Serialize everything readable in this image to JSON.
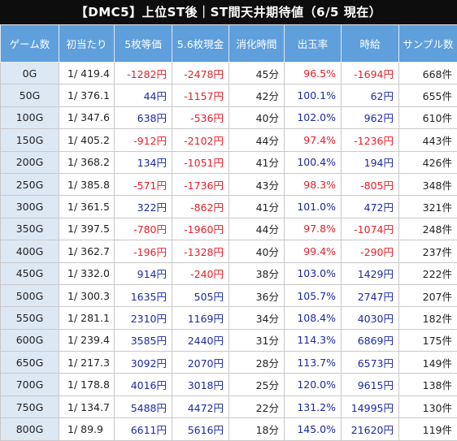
{
  "title": "【DMC5】上位ST後｜ST間天井期待値（6/5 現在）",
  "colors": {
    "header_bg": "#5f9fdc",
    "title_bg": "#0d0d0d",
    "negative": "#e8202a",
    "positive": "#1c2aa5",
    "first_col_bg": "#dde8f5"
  },
  "headers": [
    "ゲーム数",
    "初当たり",
    "5枚等価",
    "5.6枚現金",
    "消化時間",
    "出玉率",
    "時給",
    "サンプル数"
  ],
  "rows": [
    {
      "g": "0G",
      "hit": "1/ 419.4",
      "eq5": "-1282円",
      "cash56": "-2478円",
      "time": "45分",
      "rate": "96.5%",
      "wage": "-1694円",
      "samples": "668件"
    },
    {
      "g": "50G",
      "hit": "1/ 376.1",
      "eq5": "44円",
      "cash56": "-1157円",
      "time": "42分",
      "rate": "100.1%",
      "wage": "62円",
      "samples": "655件"
    },
    {
      "g": "100G",
      "hit": "1/ 347.6",
      "eq5": "638円",
      "cash56": "-536円",
      "time": "40分",
      "rate": "102.0%",
      "wage": "962円",
      "samples": "610件"
    },
    {
      "g": "150G",
      "hit": "1/ 405.2",
      "eq5": "-912円",
      "cash56": "-2102円",
      "time": "44分",
      "rate": "97.4%",
      "wage": "-1236円",
      "samples": "443件"
    },
    {
      "g": "200G",
      "hit": "1/ 368.2",
      "eq5": "134円",
      "cash56": "-1051円",
      "time": "41分",
      "rate": "100.4%",
      "wage": "194円",
      "samples": "426件"
    },
    {
      "g": "250G",
      "hit": "1/ 385.8",
      "eq5": "-571円",
      "cash56": "-1736円",
      "time": "43分",
      "rate": "98.3%",
      "wage": "-805円",
      "samples": "348件"
    },
    {
      "g": "300G",
      "hit": "1/ 361.5",
      "eq5": "322円",
      "cash56": "-862円",
      "time": "41分",
      "rate": "101.0%",
      "wage": "472円",
      "samples": "321件"
    },
    {
      "g": "350G",
      "hit": "1/ 397.5",
      "eq5": "-780円",
      "cash56": "-1960円",
      "time": "44分",
      "rate": "97.8%",
      "wage": "-1074円",
      "samples": "248件"
    },
    {
      "g": "400G",
      "hit": "1/ 362.7",
      "eq5": "-196円",
      "cash56": "-1328円",
      "time": "40分",
      "rate": "99.4%",
      "wage": "-290円",
      "samples": "237件"
    },
    {
      "g": "450G",
      "hit": "1/ 332.0",
      "eq5": "914円",
      "cash56": "-240円",
      "time": "38分",
      "rate": "103.0%",
      "wage": "1429円",
      "samples": "222件"
    },
    {
      "g": "500G",
      "hit": "1/ 300.3",
      "eq5": "1635円",
      "cash56": "505円",
      "time": "36分",
      "rate": "105.7%",
      "wage": "2747円",
      "samples": "207件"
    },
    {
      "g": "550G",
      "hit": "1/ 281.1",
      "eq5": "2310円",
      "cash56": "1169円",
      "time": "34分",
      "rate": "108.4%",
      "wage": "4030円",
      "samples": "182件"
    },
    {
      "g": "600G",
      "hit": "1/ 239.4",
      "eq5": "3585円",
      "cash56": "2440円",
      "time": "31分",
      "rate": "114.3%",
      "wage": "6869円",
      "samples": "175件"
    },
    {
      "g": "650G",
      "hit": "1/ 217.3",
      "eq5": "3092円",
      "cash56": "2070円",
      "time": "28分",
      "rate": "113.7%",
      "wage": "6573円",
      "samples": "149件"
    },
    {
      "g": "700G",
      "hit": "1/ 178.8",
      "eq5": "4016円",
      "cash56": "3018円",
      "time": "25分",
      "rate": "120.0%",
      "wage": "9615円",
      "samples": "138件"
    },
    {
      "g": "750G",
      "hit": "1/ 134.7",
      "eq5": "5488円",
      "cash56": "4472円",
      "time": "22分",
      "rate": "131.2%",
      "wage": "14995円",
      "samples": "130件"
    },
    {
      "g": "800G",
      "hit": "1/ 89.9",
      "eq5": "6611円",
      "cash56": "5616円",
      "time": "18分",
      "rate": "145.0%",
      "wage": "21620円",
      "samples": "119件"
    }
  ]
}
